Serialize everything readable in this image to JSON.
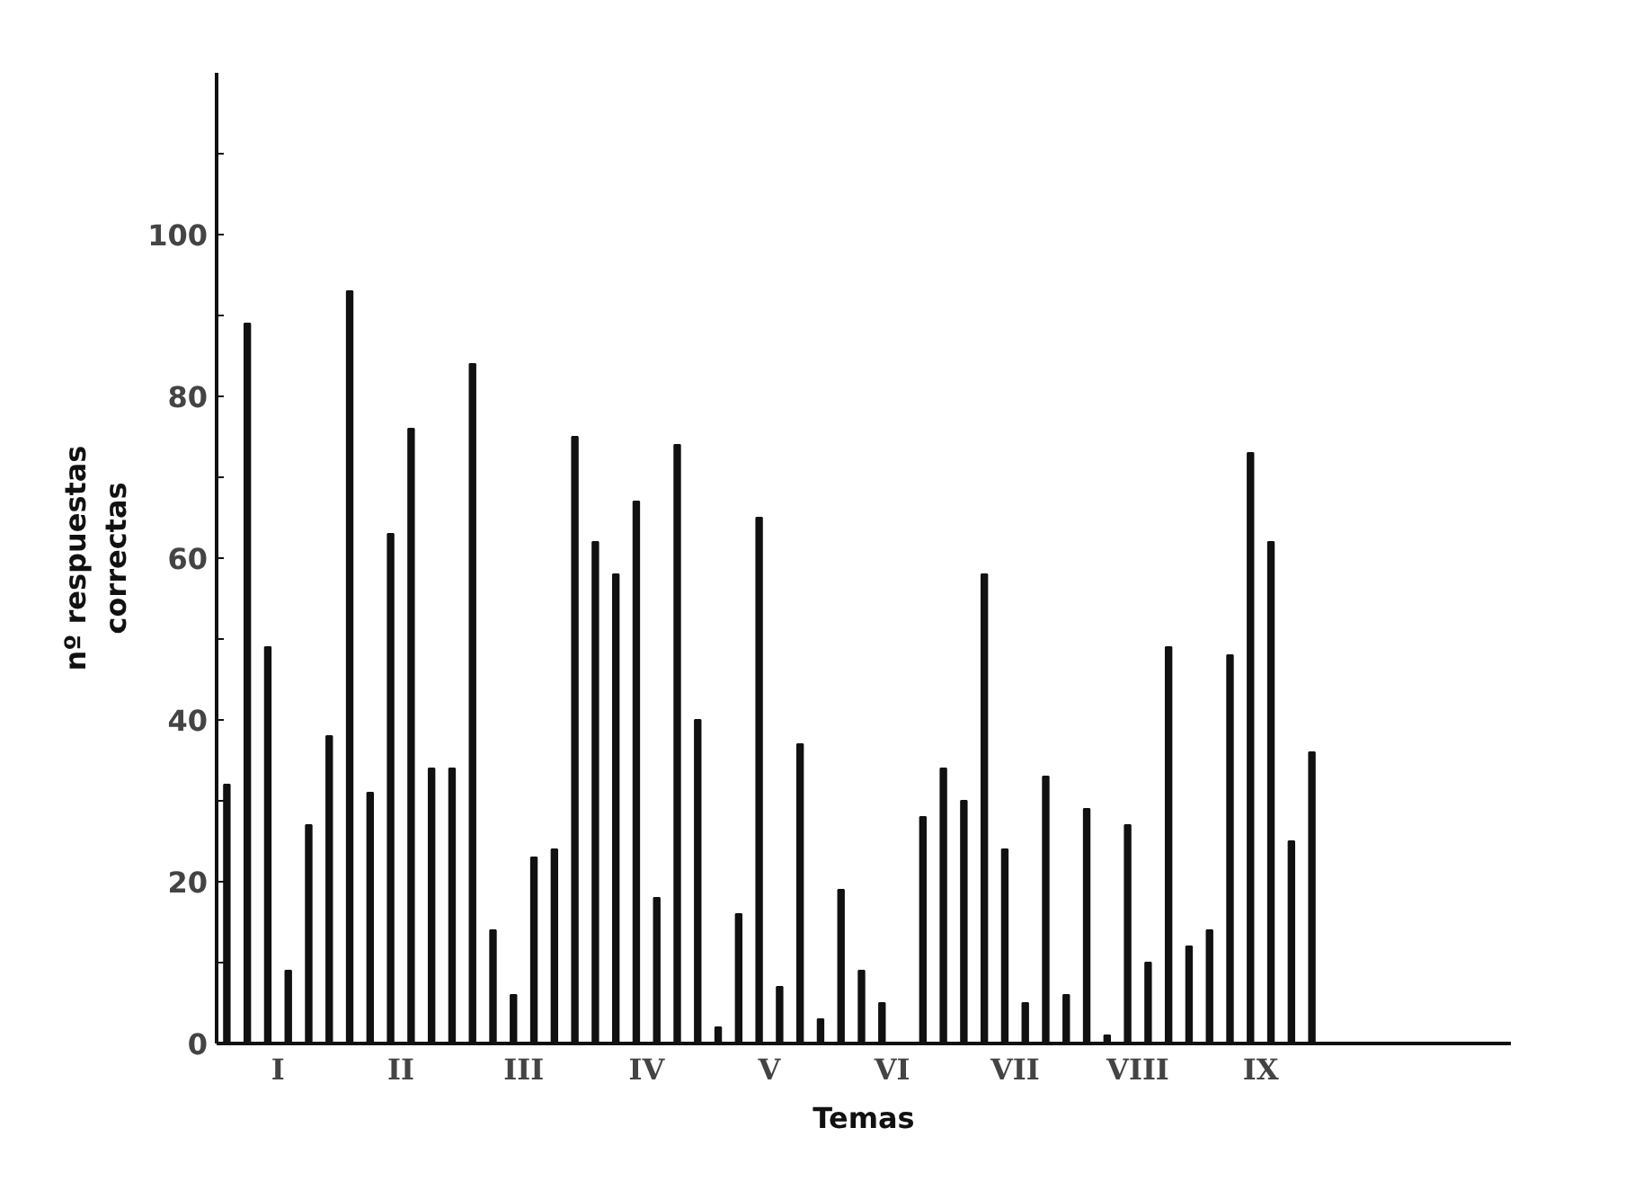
{
  "chart_data": {
    "type": "bar",
    "xlabel": "Temas",
    "ylabel": "nº respuestas\ncorrectas",
    "color": "#111111",
    "categories": [
      null,
      null,
      "I",
      null,
      null,
      null,
      null,
      null,
      "II",
      null,
      null,
      null,
      null,
      null,
      "III",
      null,
      null,
      null,
      null,
      null,
      "IV",
      null,
      null,
      null,
      null,
      null,
      "V",
      null,
      null,
      null,
      null,
      null,
      "VI",
      null,
      null,
      null,
      null,
      null,
      "VII",
      null,
      null,
      null,
      null,
      null,
      "VIII",
      null,
      null,
      null,
      null,
      null,
      "IX",
      null,
      null,
      null
    ],
    "values": [
      32,
      89,
      49,
      9,
      27,
      38,
      93,
      31,
      63,
      76,
      34,
      34,
      84,
      14,
      6,
      23,
      24,
      75,
      62,
      58,
      67,
      18,
      74,
      40,
      2,
      16,
      65,
      7,
      37,
      3,
      19,
      9,
      5,
      0,
      28,
      34,
      30,
      58,
      24,
      5,
      33,
      6,
      29,
      1,
      27,
      10,
      49,
      12,
      14,
      48,
      73,
      62,
      25,
      36
    ],
    "ylim": [
      0,
      120
    ],
    "yticks": [
      0,
      {
        "value": 10,
        "label": null
      },
      20,
      {
        "value": 30,
        "label": null
      },
      40,
      {
        "value": 50,
        "label": null
      },
      60,
      {
        "value": 70,
        "label": null
      },
      80,
      {
        "value": 90,
        "label": null
      },
      100,
      {
        "value": 110,
        "label": null
      }
    ],
    "grid": false
  }
}
